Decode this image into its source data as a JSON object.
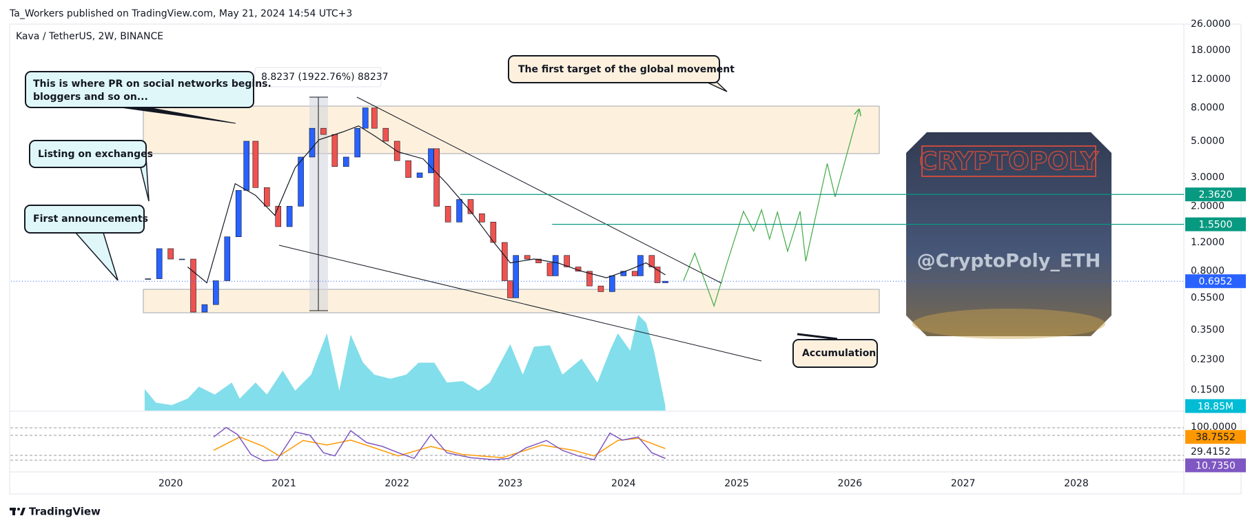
{
  "header": {
    "published": "Ta_Workers published on TradingView.com, May 21, 2024 14:54 UTC+3"
  },
  "chart_data": {
    "type": "candlestick",
    "symbol": "Kava / TetherUS, 2W, BINANCE",
    "log_scale": true,
    "xlim": [
      2018.59,
      2028.95
    ],
    "xticks": [
      2020,
      2021,
      2022,
      2023,
      2024,
      2025,
      2026,
      2027,
      2028
    ],
    "ylim": [
      0.1112,
      26.04
    ],
    "yticks": [
      {
        "value": 26,
        "label": "26.0000"
      },
      {
        "value": 18,
        "label": "18.0000"
      },
      {
        "value": 12,
        "label": "12.0000"
      },
      {
        "value": 8,
        "label": "8.0000"
      },
      {
        "value": 5,
        "label": "5.0000"
      },
      {
        "value": 3,
        "label": "3.0000"
      },
      {
        "value": 2,
        "label": "2.0000"
      },
      {
        "value": 1.2,
        "label": "1.2000"
      },
      {
        "value": 0.8,
        "label": "0.8000"
      },
      {
        "value": 0.55,
        "label": "0.5500"
      },
      {
        "value": 0.35,
        "label": "0.3500"
      },
      {
        "value": 0.23,
        "label": "0.2300"
      },
      {
        "value": 0.15,
        "label": "0.1500"
      }
    ],
    "price": {
      "up_color": "#2962ff",
      "down_color": "#ef5350",
      "x": [
        2019.8,
        2019.9,
        2020.0,
        2020.1,
        2020.2,
        2020.3,
        2020.4,
        2020.5,
        2020.6,
        2020.67,
        2020.75,
        2020.85,
        2020.95,
        2021.05,
        2021.15,
        2021.25,
        2021.35,
        2021.45,
        2021.55,
        2021.65,
        2021.72,
        2021.8,
        2021.9,
        2022.0,
        2022.1,
        2022.2,
        2022.3,
        2022.35,
        2022.45,
        2022.55,
        2022.65,
        2022.75,
        2022.85,
        2022.95,
        2023.0,
        2023.05,
        2023.15,
        2023.25,
        2023.35,
        2023.4,
        2023.5,
        2023.6,
        2023.7,
        2023.8,
        2023.9,
        2024.0,
        2024.1,
        2024.15,
        2024.25,
        2024.3,
        2024.37
      ],
      "values": [
        0.72,
        1.1,
        0.95,
        0.95,
        0.45,
        0.5,
        0.7,
        1.3,
        2.5,
        5.0,
        2.6,
        2.0,
        1.5,
        2.0,
        4.0,
        6.0,
        5.5,
        3.5,
        4.0,
        6.0,
        8.0,
        6.0,
        5.0,
        3.8,
        3.0,
        3.2,
        4.5,
        2.0,
        1.6,
        2.2,
        1.8,
        1.6,
        1.2,
        0.7,
        0.55,
        1.0,
        0.95,
        0.9,
        0.75,
        1.0,
        0.85,
        0.8,
        0.65,
        0.6,
        0.75,
        0.8,
        0.75,
        1.0,
        0.85,
        0.68,
        0.6952
      ]
    },
    "moving_average": {
      "color": "#131722",
      "x": [
        2020.15,
        2020.32,
        2020.43,
        2020.57,
        2020.75,
        2020.92,
        2021.1,
        2021.31,
        2021.52,
        2021.66,
        2021.8,
        2022.01,
        2022.23,
        2022.44,
        2022.65,
        2022.86,
        2023.0,
        2023.21,
        2023.42,
        2023.63,
        2023.85,
        2024.06,
        2024.2,
        2024.37
      ],
      "values": [
        0.85,
        0.68,
        1.26,
        2.75,
        2.33,
        1.76,
        3.45,
        5.1,
        5.7,
        6.2,
        5.4,
        4.3,
        3.9,
        2.75,
        1.86,
        1.19,
        0.9,
        0.95,
        0.9,
        0.8,
        0.73,
        0.82,
        0.9,
        0.76
      ]
    },
    "projection": {
      "color": "#4caf50",
      "x": [
        2024.53,
        2024.63,
        2024.8,
        2024.92,
        2025.06,
        2025.15,
        2025.22,
        2025.29,
        2025.36,
        2025.45,
        2025.56,
        2025.61,
        2025.8,
        2025.87,
        2026.08
      ],
      "values": [
        0.7,
        1.03,
        0.49,
        0.92,
        1.86,
        1.41,
        1.9,
        1.26,
        1.84,
        1.06,
        1.86,
        0.92,
        3.65,
        2.28,
        7.75
      ]
    },
    "levels": [
      {
        "value": 2.362,
        "label": "2.3620",
        "color": "#089981",
        "x_start": 2022.56
      },
      {
        "value": 1.55,
        "label": "1.5500",
        "color": "#089981",
        "x_start": 2023.37
      }
    ],
    "last_price": {
      "value": 0.6952,
      "color": "#2962ff"
    },
    "volume": {
      "color": "#4dd0e1",
      "ylim": [
        0,
        420000000
      ],
      "x": [
        2019.77,
        2019.87,
        2020.01,
        2020.15,
        2020.25,
        2020.39,
        2020.54,
        2020.61,
        2020.75,
        2020.85,
        2020.99,
        2021.1,
        2021.24,
        2021.38,
        2021.49,
        2021.59,
        2021.7,
        2021.8,
        2021.94,
        2022.08,
        2022.19,
        2022.33,
        2022.44,
        2022.58,
        2022.72,
        2022.82,
        2023.0,
        2023.11,
        2023.21,
        2023.35,
        2023.46,
        2023.63,
        2023.77,
        2023.88,
        2023.95,
        2024.06,
        2024.13,
        2024.2,
        2024.27,
        2024.37
      ],
      "values": [
        90000000,
        33000000,
        23000000,
        50000000,
        100000000,
        67000000,
        117000000,
        50000000,
        117000000,
        67000000,
        167000000,
        83000000,
        150000000,
        323000000,
        83000000,
        317000000,
        200000000,
        150000000,
        133000000,
        150000000,
        200000000,
        200000000,
        117000000,
        123000000,
        83000000,
        117000000,
        277000000,
        150000000,
        267000000,
        273000000,
        150000000,
        217000000,
        117000000,
        250000000,
        323000000,
        250000000,
        400000000,
        367000000,
        250000000,
        18850000
      ],
      "last_label": {
        "value": 18850000,
        "label": "18.85M"
      },
      "label_color": "#00bcd4"
    },
    "rsi": {
      "ylim": [
        0,
        100
      ],
      "color": "#7e57c2",
      "x": [
        2020.38,
        2020.49,
        2020.59,
        2020.71,
        2020.82,
        2020.94,
        2021.1,
        2021.23,
        2021.35,
        2021.45,
        2021.59,
        2021.73,
        2021.87,
        2022.01,
        2022.15,
        2022.3,
        2022.44,
        2022.65,
        2022.86,
        2022.99,
        2023.14,
        2023.32,
        2023.46,
        2023.6,
        2023.74,
        2023.88,
        2023.99,
        2024.13,
        2024.25,
        2024.37
      ],
      "values": [
        72,
        99,
        79,
        22,
        4,
        7,
        86,
        77,
        27,
        18,
        90,
        56,
        45,
        27,
        11,
        79,
        27,
        13,
        7,
        11,
        41,
        62,
        34,
        18,
        7,
        83,
        63,
        72,
        27,
        10.735
      ],
      "last_label": {
        "value": 10.735,
        "label": "10.7350"
      },
      "ma": {
        "color": "#ff9800",
        "x": [
          2020.38,
          2020.61,
          2020.82,
          2020.96,
          2021.17,
          2021.38,
          2021.59,
          2021.8,
          2022.01,
          2022.3,
          2022.58,
          2022.93,
          2023.28,
          2023.56,
          2023.74,
          2023.95,
          2024.13,
          2024.37
        ],
        "values": [
          34,
          72,
          45,
          18,
          62,
          49,
          63,
          41,
          18,
          45,
          22,
          13,
          49,
          34,
          18,
          62,
          68,
          38.7552
        ]
      },
      "scale_labels": [
        {
          "value": 100,
          "label": "100.0000"
        },
        {
          "value": 29.4152,
          "label": "29.4152"
        }
      ]
    },
    "measure_label": "8.8237 (1922.76%) 88237",
    "annotations": [
      "This is where PR on social networks begins.",
      "bloggers and so on...",
      "Listing on exchanges",
      "First announcements",
      "The first target of the global movement",
      "Accumulation"
    ],
    "watermark": {
      "title": "CRYPTOPOLY",
      "handle": "@CryptoPoly_ETH"
    }
  },
  "footer": {
    "brand": "TradingView"
  }
}
